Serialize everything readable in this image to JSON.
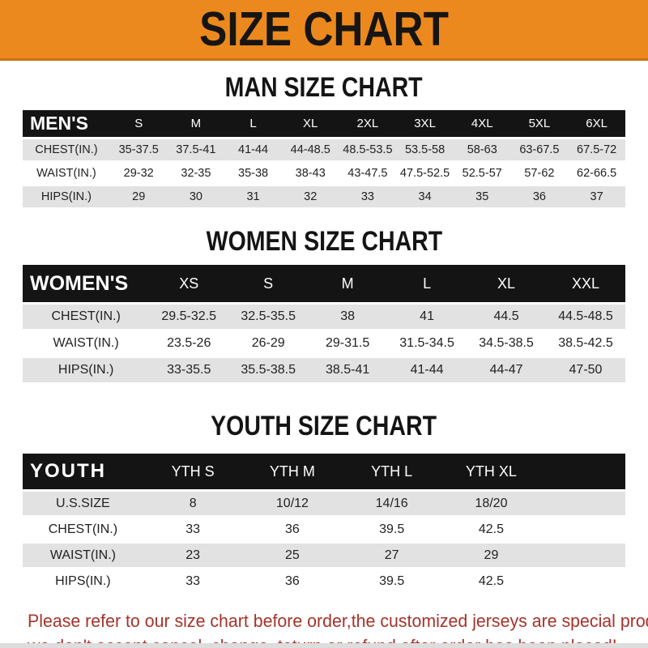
{
  "banner": {
    "title": "SIZE CHART"
  },
  "sections": [
    {
      "heading": "MAN SIZE CHART",
      "label": "MEN'S",
      "columns": [
        "S",
        "M",
        "L",
        "XL",
        "2XL",
        "3XL",
        "4XL",
        "5XL",
        "6XL"
      ],
      "rows": [
        {
          "label": "CHEST(IN.)",
          "values": [
            "35-37.5",
            "37.5-41",
            "41-44",
            "44-48.5",
            "48.5-53.5",
            "53.5-58",
            "58-63",
            "63-67.5",
            "67.5-72"
          ]
        },
        {
          "label": "WAIST(IN.)",
          "values": [
            "29-32",
            "32-35",
            "35-38",
            "38-43",
            "43-47.5",
            "47.5-52.5",
            "52.5-57",
            "57-62",
            "62-66.5"
          ]
        },
        {
          "label": "HIPS(IN.)",
          "values": [
            "29",
            "30",
            "31",
            "32",
            "33",
            "34",
            "35",
            "36",
            "37"
          ]
        }
      ]
    },
    {
      "heading": "WOMEN SIZE CHART",
      "label": "WOMEN'S",
      "columns": [
        "XS",
        "S",
        "M",
        "L",
        "XL",
        "XXL"
      ],
      "rows": [
        {
          "label": "CHEST(IN.)",
          "values": [
            "29.5-32.5",
            "32.5-35.5",
            "38",
            "41",
            "44.5",
            "44.5-48.5"
          ]
        },
        {
          "label": "WAIST(IN.)",
          "values": [
            "23.5-26",
            "26-29",
            "29-31.5",
            "31.5-34.5",
            "34.5-38.5",
            "38.5-42.5"
          ]
        },
        {
          "label": "HIPS(IN.)",
          "values": [
            "33-35.5",
            "35.5-38.5",
            "38.5-41",
            "41-44",
            "44-47",
            "47-50"
          ]
        }
      ]
    },
    {
      "heading": "YOUTH SIZE CHART",
      "label": "YOUTH",
      "columns": [
        "YTH S",
        "YTH M",
        "YTH L",
        "YTH XL"
      ],
      "trailing_blank": true,
      "rows": [
        {
          "label": "U.S.SIZE",
          "values": [
            "8",
            "10/12",
            "14/16",
            "18/20"
          ]
        },
        {
          "label": "CHEST(IN.)",
          "values": [
            "33",
            "36",
            "39.5",
            "42.5"
          ]
        },
        {
          "label": "WAIST(IN.)",
          "values": [
            "23",
            "25",
            "27",
            "29"
          ]
        },
        {
          "label": "HIPS(IN.)",
          "values": [
            "33",
            "36",
            "39.5",
            "42.5"
          ]
        }
      ]
    }
  ],
  "footer": {
    "line1": "Please refer to our size chart before order,the customized jerseys are special products,",
    "line2": "we don't accept cancel, change, teturn or refund after order has been placed!"
  },
  "colors": {
    "banner_orange": "#EC891E",
    "banner_border": "#C9730F",
    "header_black": "#141414",
    "row_gray": "#E2E2E2",
    "footer_red": "#A6332B"
  }
}
